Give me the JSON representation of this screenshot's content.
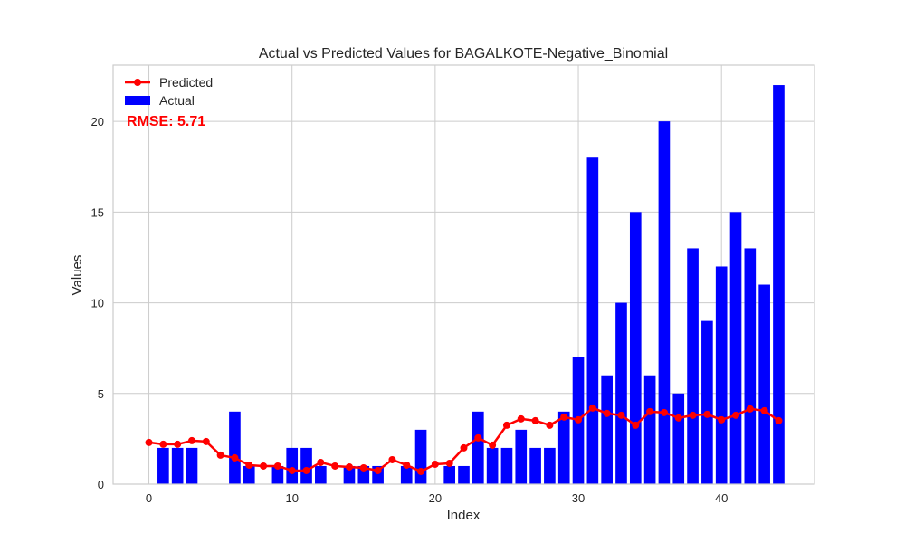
{
  "chart_data": {
    "type": "bar",
    "title": "Actual vs Predicted Values for BAGALKOTE-Negative_Binomial",
    "xlabel": "Index",
    "ylabel": "Values",
    "xlim": [
      -2.5,
      46.5
    ],
    "ylim": [
      0,
      23.1
    ],
    "xticks": [
      0,
      10,
      20,
      30,
      40
    ],
    "yticks": [
      0,
      5,
      10,
      15,
      20
    ],
    "grid": true,
    "legend_position": "top-left",
    "annotation": {
      "text": "RMSE: 5.71",
      "color": "#ff0000"
    },
    "series": [
      {
        "name": "Actual",
        "kind": "bar",
        "color": "#0000ff",
        "x": [
          0,
          1,
          2,
          3,
          4,
          5,
          6,
          7,
          8,
          9,
          10,
          11,
          12,
          13,
          14,
          15,
          16,
          17,
          18,
          19,
          20,
          21,
          22,
          23,
          24,
          25,
          26,
          27,
          28,
          29,
          30,
          31,
          32,
          33,
          34,
          35,
          36,
          37,
          38,
          39,
          40,
          41,
          42,
          43,
          44
        ],
        "values": [
          0,
          2,
          2,
          2,
          0,
          0,
          4,
          1,
          0,
          1,
          2,
          2,
          1,
          0,
          1,
          1,
          1,
          0,
          1,
          3,
          0,
          1,
          1,
          4,
          2,
          2,
          3,
          2,
          2,
          4,
          7,
          18,
          6,
          10,
          15,
          6,
          20,
          5,
          13,
          9,
          12,
          15,
          13,
          11,
          22
        ]
      },
      {
        "name": "Predicted",
        "kind": "line",
        "color": "#ff0000",
        "x": [
          0,
          1,
          2,
          3,
          4,
          5,
          6,
          7,
          8,
          9,
          10,
          11,
          12,
          13,
          14,
          15,
          16,
          17,
          18,
          19,
          20,
          21,
          22,
          23,
          24,
          25,
          26,
          27,
          28,
          29,
          30,
          31,
          32,
          33,
          34,
          35,
          36,
          37,
          38,
          39,
          40,
          41,
          42,
          43,
          44
        ],
        "values": [
          2.3,
          2.2,
          2.2,
          2.4,
          2.35,
          1.6,
          1.45,
          1.05,
          1.0,
          1.0,
          0.75,
          0.75,
          1.2,
          1.0,
          0.95,
          0.9,
          0.75,
          1.35,
          1.05,
          0.7,
          1.1,
          1.15,
          2.0,
          2.55,
          2.15,
          3.25,
          3.6,
          3.5,
          3.25,
          3.7,
          3.55,
          4.2,
          3.9,
          3.8,
          3.25,
          4.0,
          3.95,
          3.65,
          3.8,
          3.85,
          3.55,
          3.8,
          4.15,
          4.05,
          3.5
        ]
      }
    ]
  }
}
